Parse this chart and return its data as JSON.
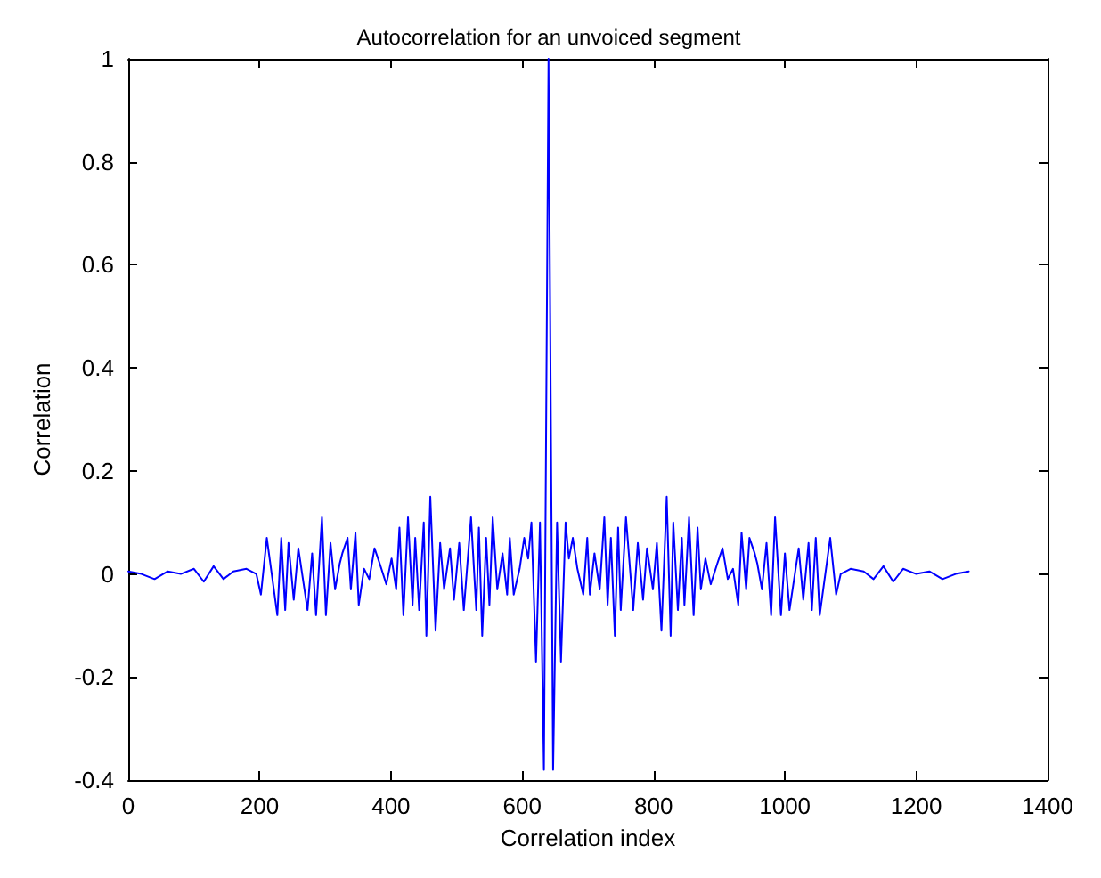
{
  "chart_data": {
    "type": "line",
    "title": "Autocorrelation for an unvoiced segment",
    "xlabel": "Correlation index",
    "ylabel": "Correlation",
    "x": [
      0,
      20,
      40,
      60,
      80,
      100,
      115,
      130,
      145,
      160,
      180,
      195,
      202,
      211,
      227,
      233,
      239,
      244,
      252,
      259,
      273,
      280,
      286,
      295,
      301,
      308,
      315,
      322,
      326,
      334,
      339,
      346,
      351,
      359,
      367,
      375,
      383,
      393,
      401,
      408,
      413,
      419,
      426,
      433,
      437,
      443,
      450,
      454,
      460,
      468,
      475,
      481,
      490,
      496,
      504,
      511,
      522,
      530,
      534,
      539,
      545,
      550,
      555,
      562,
      570,
      577,
      581,
      587,
      596,
      603,
      609,
      614,
      621,
      627,
      633,
      640,
      647,
      653,
      659,
      666,
      671,
      677,
      684,
      693,
      699,
      703,
      710,
      718,
      725,
      730,
      735,
      741,
      746,
      750,
      758,
      769,
      776,
      784,
      790,
      799,
      805,
      812,
      820,
      826,
      830,
      837,
      843,
      847,
      854,
      861,
      867,
      872,
      879,
      887,
      897,
      905,
      913,
      921,
      929,
      934,
      941,
      946,
      954,
      958,
      965,
      972,
      979,
      985,
      994,
      1000,
      1007,
      1021,
      1028,
      1036,
      1041,
      1047,
      1053,
      1069,
      1078,
      1085,
      1100,
      1120,
      1135,
      1150,
      1165,
      1180,
      1200,
      1220,
      1240,
      1260,
      1280
    ],
    "series": [
      {
        "color": "#0000ff",
        "values": [
          0.005,
          0,
          -0.01,
          0.005,
          0,
          0.01,
          -0.015,
          0.015,
          -0.01,
          0.005,
          0.01,
          0,
          -0.04,
          0.07,
          -0.08,
          0.07,
          -0.07,
          0.06,
          -0.05,
          0.05,
          -0.07,
          0.04,
          -0.08,
          0.11,
          -0.08,
          0.06,
          -0.03,
          0.02,
          0.04,
          0.07,
          -0.03,
          0.08,
          -0.06,
          0.01,
          -0.01,
          0.05,
          0.02,
          -0.02,
          0.03,
          -0.03,
          0.09,
          -0.08,
          0.11,
          -0.06,
          0.07,
          -0.07,
          0.1,
          -0.12,
          0.15,
          -0.11,
          0.06,
          -0.03,
          0.05,
          -0.05,
          0.06,
          -0.07,
          0.11,
          -0.07,
          0.09,
          -0.12,
          0.07,
          -0.06,
          0.11,
          -0.03,
          0.04,
          -0.04,
          0.07,
          -0.04,
          0.01,
          0.07,
          0.03,
          0.1,
          -0.17,
          0.1,
          -0.38,
          1,
          -0.38,
          0.1,
          -0.17,
          0.1,
          0.03,
          0.07,
          0.01,
          -0.04,
          0.07,
          -0.04,
          0.04,
          -0.03,
          0.11,
          -0.06,
          0.07,
          -0.12,
          0.09,
          -0.07,
          0.11,
          -0.07,
          0.06,
          -0.05,
          0.05,
          -0.03,
          0.06,
          -0.11,
          0.15,
          -0.12,
          0.1,
          -0.07,
          0.07,
          -0.06,
          0.11,
          -0.08,
          0.09,
          -0.03,
          0.03,
          -0.02,
          0.02,
          0.05,
          -0.01,
          0.01,
          -0.06,
          0.08,
          -0.03,
          0.07,
          0.04,
          0.02,
          -0.03,
          0.06,
          -0.08,
          0.11,
          -0.08,
          0.04,
          -0.07,
          0.05,
          -0.05,
          0.06,
          -0.07,
          0.07,
          -0.08,
          0.07,
          -0.04,
          0,
          0.01,
          0.005,
          -0.01,
          0.015,
          -0.015,
          0.01,
          0,
          0.005,
          -0.01,
          0,
          0.005
        ]
      }
    ],
    "xlim": [
      0,
      1400
    ],
    "xticks": [
      0,
      200,
      400,
      600,
      800,
      1000,
      1200,
      1400
    ],
    "ylim": [
      -0.4,
      1
    ],
    "yticks": [
      -0.4,
      -0.2,
      0,
      0.2,
      0.4,
      0.6,
      0.8,
      1
    ],
    "marker": "none",
    "line_style": "solid"
  }
}
